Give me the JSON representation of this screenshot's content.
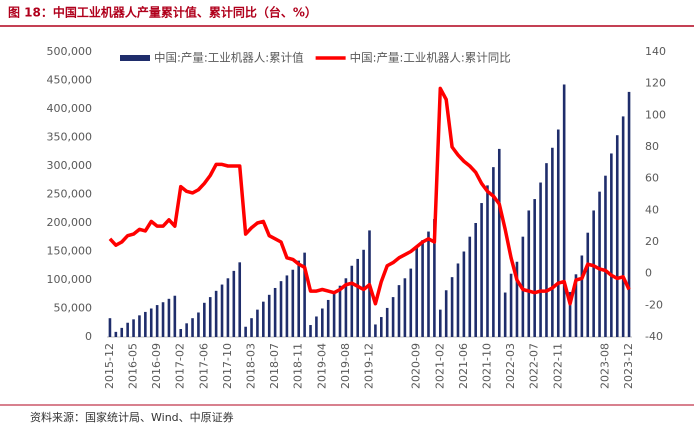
{
  "chart_data": {
    "type": "bar_line",
    "title": "图 18：中国工业机器人产量累计值、累计同比（台、%）",
    "source": "资料来源：国家统计局、Wind、中原证券",
    "legend": "upper left",
    "categories": [
      "2015-12",
      null,
      null,
      null,
      "2016-05",
      null,
      null,
      null,
      "2016-09",
      null,
      null,
      null,
      "2017-02",
      null,
      null,
      null,
      "2017-06",
      null,
      null,
      null,
      "2017-10",
      null,
      null,
      null,
      "2018-03",
      null,
      null,
      null,
      "2018-07",
      null,
      null,
      null,
      "2018-11",
      null,
      null,
      null,
      "2019-04",
      null,
      null,
      null,
      "2019-08",
      null,
      null,
      null,
      "2019-12",
      null,
      null,
      null,
      null,
      null,
      null,
      null,
      "2020-09",
      null,
      null,
      null,
      "2021-02",
      null,
      null,
      null,
      "2021-06",
      null,
      null,
      null,
      "2021-10",
      null,
      null,
      null,
      "2022-03",
      null,
      null,
      null,
      "2022-07",
      null,
      null,
      null,
      "2022-11",
      null,
      null,
      null,
      null,
      null,
      null,
      null,
      "2023-08",
      null,
      null,
      null,
      "2023-12"
    ],
    "series": [
      {
        "name": "中国:产量:工业机器人:累计值",
        "type": "bar",
        "color": "#1f2d6b",
        "values": [
          33000,
          9000,
          16000,
          25000,
          31000,
          38000,
          44000,
          50000,
          56000,
          61000,
          67000,
          72400,
          14000,
          24000,
          33000,
          43000,
          60000,
          70000,
          81000,
          92000,
          103000,
          116000,
          131000,
          18000,
          33000,
          48000,
          62000,
          74000,
          86000,
          98000,
          108000,
          118000,
          134000,
          148000,
          21000,
          36000,
          50000,
          65000,
          77000,
          90000,
          103000,
          125000,
          137000,
          153000,
          187000,
          22000,
          35000,
          51000,
          70000,
          91000,
          103000,
          120000,
          157000,
          170000,
          185000,
          207000,
          48000,
          82000,
          105000,
          129000,
          150000,
          176000,
          200000,
          235000,
          266000,
          298000,
          330000,
          78000,
          111000,
          132000,
          176000,
          222000,
          242000,
          271000,
          305000,
          332000,
          364000,
          443000,
          79000,
          110000,
          143000,
          183000,
          222000,
          255000,
          283000,
          322000,
          354000,
          387000,
          430000
        ]
      },
      {
        "name": "中国:产量:工业机器人:累计同比",
        "type": "line",
        "axis": "y2",
        "color": "#ff0000",
        "values": [
          22,
          18,
          20,
          24,
          25,
          28,
          27,
          33,
          30,
          30,
          34,
          30,
          55,
          52,
          51,
          53,
          57,
          62,
          69,
          69,
          68,
          68,
          68,
          25,
          29,
          32,
          33,
          24,
          22,
          20,
          10,
          9,
          6,
          4,
          -11,
          -11,
          -10,
          -11,
          -12,
          -10,
          -7,
          -6,
          -8,
          -10,
          -7,
          -19,
          -5,
          5,
          7,
          10,
          12,
          14,
          17,
          20,
          22,
          20,
          117,
          110,
          80,
          75,
          71,
          68,
          64,
          57,
          52,
          49,
          44,
          28,
          10,
          -4,
          -10,
          -11,
          -12,
          -11,
          -11,
          -9,
          -6,
          -5,
          -19,
          -4,
          -3,
          6,
          5,
          3,
          2,
          -1,
          -3,
          -2,
          -10
        ]
      }
    ],
    "ylim": [
      0,
      500000
    ],
    "yticks": [
      0,
      {
        "value": 50000,
        "label": "50,000"
      },
      {
        "value": 100000,
        "label": "100,000"
      },
      {
        "value": 150000,
        "label": "150,000"
      },
      {
        "value": 200000,
        "label": "200,000"
      },
      {
        "value": 250000,
        "label": "250,000"
      },
      {
        "value": 300000,
        "label": "300,000"
      },
      {
        "value": 350000,
        "label": "350,000"
      },
      {
        "value": 400000,
        "label": "400,000"
      },
      {
        "value": 450000,
        "label": "450,000"
      },
      {
        "value": 500000,
        "label": "500,000"
      }
    ],
    "y2lim": [
      -40,
      140
    ],
    "y2ticks": [
      -40,
      -20,
      0,
      20,
      40,
      60,
      80,
      100,
      120,
      140
    ]
  }
}
